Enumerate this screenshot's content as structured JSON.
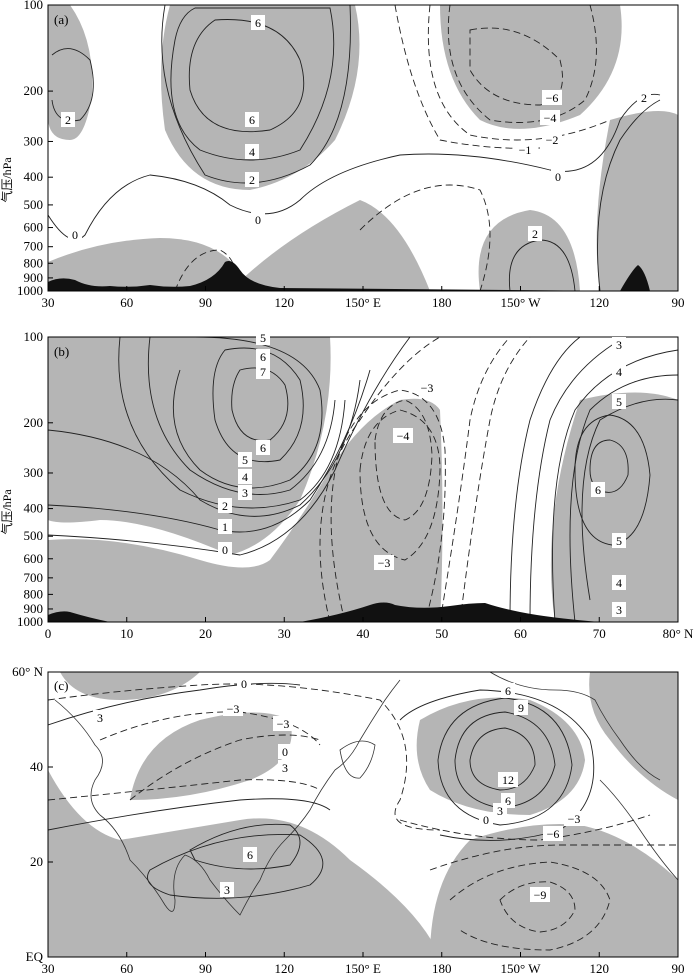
{
  "chart_data": [
    {
      "type": "contour",
      "panel_label": "(a)",
      "ylabel": "气压/hPa",
      "yticks": [
        "100",
        "200",
        "300",
        "400",
        "500",
        "600",
        "700",
        "800",
        "900",
        "1000"
      ],
      "xticks": [
        "30",
        "60",
        "90",
        "120",
        "150° E",
        "180",
        "150° W",
        "120",
        "90"
      ],
      "contour_labels": [
        "6",
        "6",
        "4",
        "2",
        "2",
        "0",
        "0",
        "−6",
        "−4",
        "−2",
        "−1",
        "0",
        "2",
        "2"
      ]
    },
    {
      "type": "contour",
      "panel_label": "(b)",
      "ylabel": "气压/hPa",
      "yticks": [
        "100",
        "200",
        "300",
        "400",
        "500",
        "600",
        "700",
        "800",
        "900",
        "1000"
      ],
      "xticks": [
        "0",
        "10",
        "20",
        "30",
        "40",
        "50",
        "60",
        "70",
        "80° N"
      ],
      "contour_labels": [
        "5",
        "6",
        "7",
        "6",
        "5",
        "4",
        "3",
        "2",
        "1",
        "0",
        "−3",
        "−4",
        "−3",
        "3",
        "4",
        "5",
        "6",
        "5",
        "4",
        "3"
      ]
    },
    {
      "type": "contour",
      "panel_label": "(c)",
      "yticks": [
        "60° N",
        "40",
        "20",
        "EQ"
      ],
      "xticks": [
        "30",
        "60",
        "90",
        "120",
        "150° E",
        "180",
        "150° W",
        "120",
        "90"
      ],
      "contour_labels": [
        "0",
        "3",
        "−3",
        "−3",
        "0",
        "3",
        "6",
        "3",
        "6",
        "9",
        "12",
        "6",
        "3",
        "0",
        "−3",
        "−6",
        "−9"
      ]
    }
  ]
}
